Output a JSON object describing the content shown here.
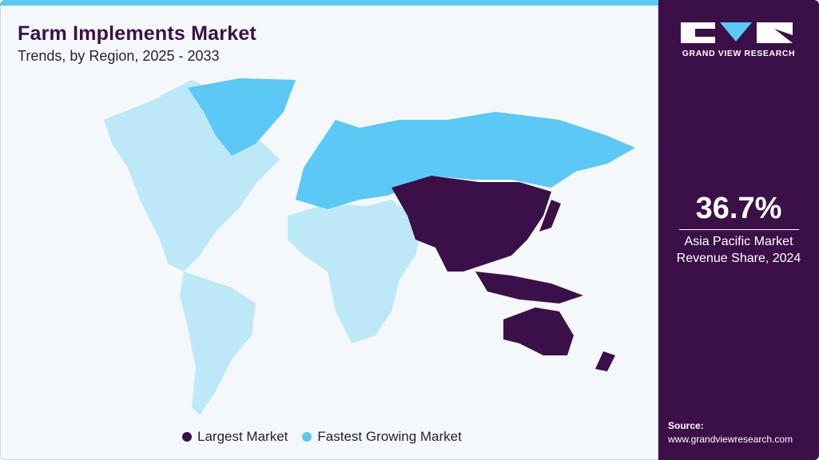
{
  "header": {
    "title": "Farm Implements Market",
    "subtitle": "Trends, by Region, 2025 - 2033"
  },
  "brand": {
    "name": "GRAND VIEW RESEARCH"
  },
  "highlight": {
    "value": "36.7%",
    "label_line1": "Asia Pacific Market",
    "label_line2": "Revenue Share, 2024"
  },
  "source": {
    "label": "Source:",
    "url": "www.grandviewresearch.com"
  },
  "legend": [
    {
      "label": "Largest Market",
      "color": "#3b1048"
    },
    {
      "label": "Fastest Growing Market",
      "color": "#5bc8f5"
    }
  ],
  "map": {
    "regions": [
      {
        "name": "North America",
        "category": "other",
        "color": "#bde8f8"
      },
      {
        "name": "Latin America",
        "category": "other",
        "color": "#bde8f8"
      },
      {
        "name": "Middle East & Africa",
        "category": "other",
        "color": "#bde8f8"
      },
      {
        "name": "Europe",
        "category": "fastest",
        "color": "#5bc8f5"
      },
      {
        "name": "Asia Pacific",
        "category": "largest",
        "color": "#3b1048"
      }
    ]
  },
  "colors": {
    "accent": "#5bc8f5",
    "brand": "#3b1048",
    "other": "#bde8f8"
  }
}
